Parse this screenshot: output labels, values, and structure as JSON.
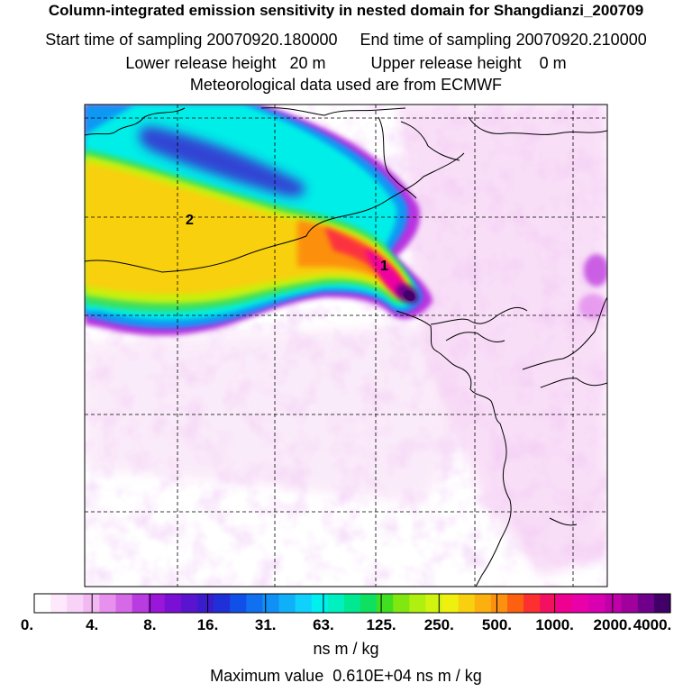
{
  "header": {
    "title": "Column-integrated emission sensitivity in nested domain for Shangdianzi_200709",
    "line2": "Start time of sampling 20070920.180000     End time of sampling 20070920.210000",
    "line3": "Lower release height   20 m          Upper release height    0 m",
    "line4": "Meteorological data used are from ECMWF"
  },
  "map": {
    "labels": [
      "1",
      "2"
    ]
  },
  "colorbar": {
    "colors": [
      "#ffffff",
      "#fde8fc",
      "#f9d2f8",
      "#f2b8f2",
      "#e890ee",
      "#d66ae6",
      "#b93ce0",
      "#9a16d8",
      "#7a10d4",
      "#5a14d0",
      "#3a1ccc",
      "#2030d8",
      "#1050e8",
      "#1070f0",
      "#1090f4",
      "#10b0f8",
      "#10d0fc",
      "#00f0f0",
      "#00f0c0",
      "#00e890",
      "#10e060",
      "#40e020",
      "#80e810",
      "#b0f010",
      "#d0f410",
      "#f0f010",
      "#f8d010",
      "#fcb010",
      "#fc9010",
      "#fc6010",
      "#fc3030",
      "#f41060",
      "#f00090",
      "#e800a8",
      "#d800b0",
      "#c000a8",
      "#a0009c",
      "#70008c",
      "#400068"
    ],
    "tick_labels": [
      "0.",
      "4.",
      "8.",
      "16.",
      "31.",
      "63.",
      "125.",
      "250.",
      "500.",
      "1000.",
      "2000.",
      "4000."
    ],
    "units": "ns m / kg",
    "max_label": "Maximum value  0.610E+04 ns m / kg"
  }
}
